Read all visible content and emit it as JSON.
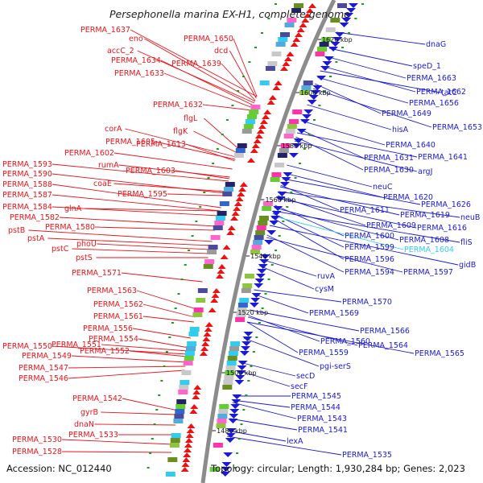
{
  "title": "Persephonella marina EX-H1, complete genome",
  "accession": "Accession: NC_012440",
  "topology": "Topology: circular; Length: 1,930,284 bp; Genes: 2,023",
  "colors": {
    "left_labels": "#e8141b",
    "right_labels": "#1a1ad6",
    "highlight_label": "#33ccee",
    "backbone": "#8c8c8c",
    "tick": "#1f9a1f"
  },
  "kbp_labels": [
    "1620 kbp",
    "1600 kbp",
    "1580 kbp",
    "1560 kbp",
    "1540 kbp",
    "1520 kbp",
    "1500 kbp",
    "1480 kbp"
  ],
  "left_labels": [
    "PERMA_1637",
    "eno",
    "accC_2",
    "PERMA_1634",
    "PERMA_1633",
    "PERMA_1650",
    "dcd",
    "PERMA_1639",
    "PERMA_1632",
    "flgL",
    "flgK",
    "corA",
    "PERMA_1605",
    "PERMA_1613",
    "PERMA_1602",
    "PERMA_1593",
    "rumA",
    "PERMA_1603",
    "PERMA_1590",
    "coaE",
    "PERMA_1588",
    "PERMA_1595",
    "PERMA_1587",
    "PERMA_1584",
    "glnA",
    "PERMA_1582",
    "PERMA_1580",
    "pstB",
    "pstA",
    "phoU",
    "pstC",
    "pstS",
    "PERMA_1571",
    "PERMA_1563",
    "PERMA_1562",
    "PERMA_1561",
    "PERMA_1556",
    "PERMA_1554",
    "PERMA_1551",
    "PERMA_1550",
    "PERMA_1549",
    "PERMA_1552",
    "PERMA_1547",
    "PERMA_1546",
    "PERMA_1542",
    "gyrB",
    "dnaN",
    "PERMA_1533",
    "PERMA_1530",
    "PERMA_1528"
  ],
  "right_labels": [
    "dnaG",
    "speD_1",
    "PERMA_1663",
    "PERMA_1662",
    "tatC",
    "PERMA_1656",
    "PERMA_1649",
    "PERMA_1653",
    "hisA",
    "PERMA_1640",
    "PERMA_1631",
    "PERMA_1641",
    "PERMA_1630",
    "argJ",
    "neuC",
    "PERMA_1620",
    "PERMA_1626",
    "PERMA_1611",
    "PERMA_1619",
    "neuB",
    "PERMA_1609",
    "PERMA_1616",
    "PERMA_1600",
    "PERMA_1608",
    "fliS",
    "PERMA_1599",
    "PERMA_1604",
    "PERMA_1596",
    "gidB",
    "PERMA_1594",
    "PERMA_1597",
    "ruvA",
    "cysM",
    "PERMA_1570",
    "PERMA_1569",
    "PERMA_1566",
    "PERMA_1560",
    "PERMA_1564",
    "PERMA_1559",
    "PERMA_1565",
    "pgi-serS",
    "secD",
    "secF",
    "PERMA_1545",
    "PERMA_1544",
    "PERMA_1543",
    "PERMA_1541",
    "lexA",
    "PERMA_1535"
  ]
}
